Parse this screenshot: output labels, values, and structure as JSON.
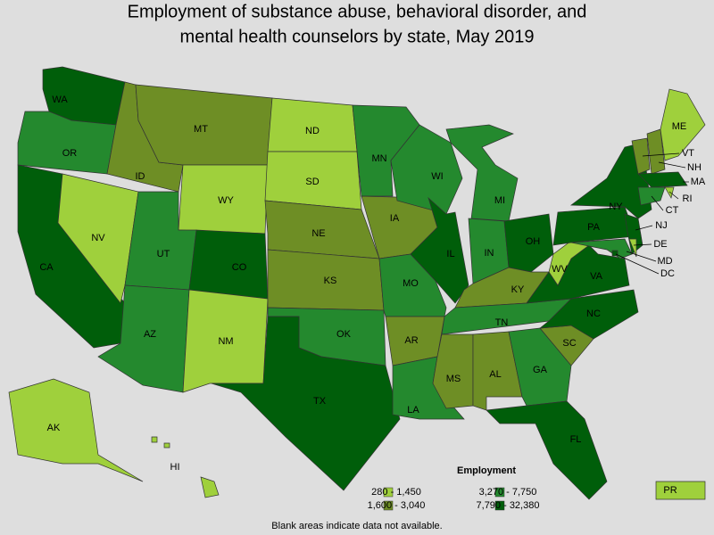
{
  "title": [
    "Employment of substance abuse, behavioral disorder, and",
    "mental health counselors by state, May 2019"
  ],
  "legend": {
    "title": "Employment",
    "classes": [
      {
        "label": "280 - 1,450",
        "color": "#9fd03c"
      },
      {
        "label": "1,600 - 3,040",
        "color": "#6e8e25"
      },
      {
        "label": "3,270 - 7,750",
        "color": "#24892e"
      },
      {
        "label": "7,790 - 32,380",
        "color": "#005e0a"
      }
    ]
  },
  "note": "Blank areas indicate data not available.",
  "states": [
    {
      "label": "WA",
      "class": 3
    },
    {
      "label": "OR",
      "class": 2
    },
    {
      "label": "CA",
      "class": 3
    },
    {
      "label": "NV",
      "class": 0
    },
    {
      "label": "ID",
      "class": 1
    },
    {
      "label": "MT",
      "class": 1
    },
    {
      "label": "WY",
      "class": 0
    },
    {
      "label": "UT",
      "class": 2
    },
    {
      "label": "AZ",
      "class": 2
    },
    {
      "label": "CO",
      "class": 3
    },
    {
      "label": "NM",
      "class": 0
    },
    {
      "label": "ND",
      "class": 0
    },
    {
      "label": "SD",
      "class": 0
    },
    {
      "label": "NE",
      "class": 1
    },
    {
      "label": "KS",
      "class": 1
    },
    {
      "label": "OK",
      "class": 2
    },
    {
      "label": "TX",
      "class": 3
    },
    {
      "label": "MN",
      "class": 2
    },
    {
      "label": "IA",
      "class": 1
    },
    {
      "label": "MO",
      "class": 2
    },
    {
      "label": "AR",
      "class": 1
    },
    {
      "label": "LA",
      "class": 2
    },
    {
      "label": "WI",
      "class": 2
    },
    {
      "label": "IL",
      "class": 3
    },
    {
      "label": "MI",
      "class": 2
    },
    {
      "label": "IN",
      "class": 2
    },
    {
      "label": "OH",
      "class": 3
    },
    {
      "label": "KY",
      "class": 1
    },
    {
      "label": "TN",
      "class": 2
    },
    {
      "label": "MS",
      "class": 1
    },
    {
      "label": "AL",
      "class": 1
    },
    {
      "label": "GA",
      "class": 2
    },
    {
      "label": "FL",
      "class": 3
    },
    {
      "label": "SC",
      "class": 1
    },
    {
      "label": "NC",
      "class": 3
    },
    {
      "label": "VA",
      "class": 3
    },
    {
      "label": "WV",
      "class": 0
    },
    {
      "label": "PA",
      "class": 3
    },
    {
      "label": "NY",
      "class": 3
    },
    {
      "label": "NJ",
      "class": 3
    },
    {
      "label": "MD",
      "class": 2
    },
    {
      "label": "DE",
      "class": 0
    },
    {
      "label": "DC",
      "class": 3
    },
    {
      "label": "VT",
      "class": 1
    },
    {
      "label": "NH",
      "class": 1
    },
    {
      "label": "ME",
      "class": 0
    },
    {
      "label": "MA",
      "class": 3
    },
    {
      "label": "CT",
      "class": 2
    },
    {
      "label": "RI",
      "class": 0
    },
    {
      "label": "AK",
      "class": 0
    },
    {
      "label": "HI",
      "class": 0
    },
    {
      "label": "PR",
      "class": 0
    }
  ]
}
